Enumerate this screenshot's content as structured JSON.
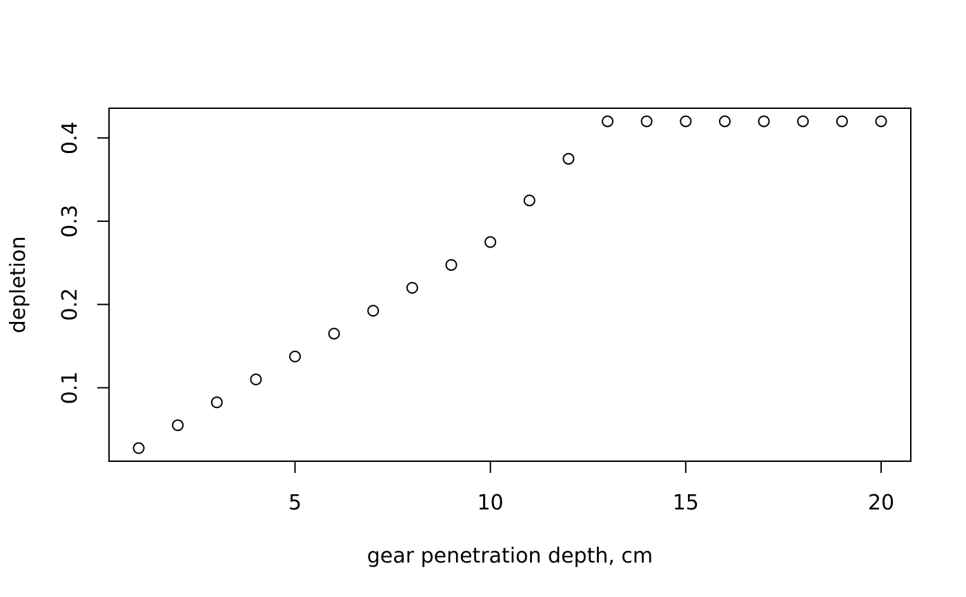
{
  "chart_data": {
    "type": "scatter",
    "title": "",
    "xlabel": "gear penetration depth, cm",
    "ylabel": "depletion",
    "x": [
      1,
      2,
      3,
      4,
      5,
      6,
      7,
      8,
      9,
      10,
      11,
      12,
      13,
      14,
      15,
      16,
      17,
      18,
      19,
      20
    ],
    "y": [
      0.0275,
      0.055,
      0.0825,
      0.11,
      0.1375,
      0.165,
      0.1925,
      0.22,
      0.2475,
      0.275,
      0.325,
      0.375,
      0.42,
      0.42,
      0.42,
      0.42,
      0.42,
      0.42,
      0.42,
      0.42
    ],
    "xlim": [
      0.24,
      20.76
    ],
    "ylim": [
      0.0118,
      0.4357
    ],
    "xticks": [
      5,
      10,
      15,
      20
    ],
    "yticks": [
      0.1,
      0.2,
      0.3,
      0.4
    ],
    "xtick_labels": [
      "5",
      "10",
      "15",
      "20"
    ],
    "ytick_labels": [
      "0.1",
      "0.2",
      "0.3",
      "0.4"
    ],
    "marker": "open-circle",
    "grid": false,
    "legend": "none",
    "colors": {
      "marker": "#000000",
      "axis": "#000000",
      "background": "#ffffff"
    }
  }
}
